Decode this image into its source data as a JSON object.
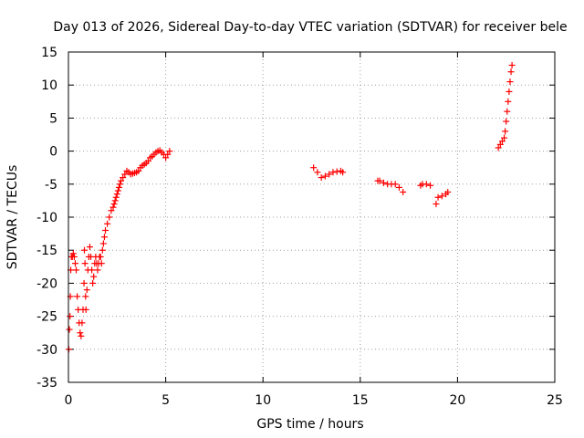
{
  "chart_data": {
    "type": "scatter",
    "title": "Day 013 of 2026, Sidereal Day-to-day VTEC variation (SDTVAR) for receiver bele",
    "xlabel": "GPS time / hours",
    "ylabel": "SDTVAR / TECUs",
    "xlim": [
      0,
      25
    ],
    "ylim": [
      -35,
      15
    ],
    "xticks": [
      0,
      5,
      10,
      15,
      20,
      25
    ],
    "yticks": [
      -35,
      -30,
      -25,
      -20,
      -15,
      -10,
      -5,
      0,
      5,
      10,
      15
    ],
    "grid": true,
    "marker": "plus",
    "color": "#ff0000",
    "series": [
      {
        "name": "SDTVAR",
        "x": [
          0.02,
          0.05,
          0.08,
          0.1,
          0.12,
          0.15,
          0.2,
          0.25,
          0.3,
          0.35,
          0.4,
          0.45,
          0.5,
          0.55,
          0.6,
          0.65,
          0.7,
          0.75,
          0.8,
          0.82,
          0.85,
          0.88,
          0.9,
          0.95,
          1.0,
          1.05,
          1.1,
          1.15,
          1.2,
          1.25,
          1.3,
          1.35,
          1.4,
          1.45,
          1.5,
          1.55,
          1.6,
          1.65,
          1.7,
          1.75,
          1.8,
          1.85,
          1.9,
          2.0,
          2.1,
          2.2,
          2.3,
          2.35,
          2.4,
          2.45,
          2.5,
          2.55,
          2.6,
          2.65,
          2.7,
          2.8,
          2.9,
          3.0,
          3.1,
          3.2,
          3.3,
          3.4,
          3.5,
          3.6,
          3.7,
          3.8,
          3.9,
          4.0,
          4.1,
          4.2,
          4.3,
          4.4,
          4.5,
          4.6,
          4.7,
          4.8,
          4.9,
          5.0,
          5.1,
          5.2,
          12.6,
          12.8,
          13.0,
          13.2,
          13.4,
          13.6,
          13.8,
          14.0,
          14.1,
          15.9,
          16.0,
          16.2,
          16.4,
          16.6,
          16.8,
          17.0,
          17.2,
          18.1,
          18.2,
          18.4,
          18.6,
          18.9,
          19.0,
          19.2,
          19.4,
          19.5,
          22.1,
          22.2,
          22.3,
          22.4,
          22.45,
          22.5,
          22.55,
          22.6,
          22.65,
          22.7,
          22.75,
          22.8
        ],
        "y": [
          -30,
          -27,
          -25,
          -22,
          -18,
          -16,
          -16,
          -15.5,
          -16,
          -17,
          -18,
          -22,
          -24,
          -26,
          -27.5,
          -28,
          -26,
          -24,
          -20,
          -15,
          -17,
          -22,
          -24,
          -21,
          -18,
          -16,
          -14.5,
          -16,
          -18,
          -20,
          -19,
          -17,
          -16,
          -17,
          -18,
          -17,
          -16,
          -16,
          -17,
          -15,
          -14,
          -13,
          -12,
          -11,
          -10,
          -9,
          -8.5,
          -8,
          -7.5,
          -7,
          -6.5,
          -6,
          -5.5,
          -5,
          -4.5,
          -4,
          -3.5,
          -3,
          -3.2,
          -3.5,
          -3.4,
          -3.3,
          -3.2,
          -3,
          -2.5,
          -2.2,
          -2,
          -1.8,
          -1.5,
          -1,
          -0.8,
          -0.5,
          -0.2,
          0,
          0.1,
          -0.2,
          -0.5,
          -1,
          -0.5,
          0,
          -2.5,
          -3.2,
          -4,
          -3.8,
          -3.5,
          -3.2,
          -3.1,
          -3,
          -3.2,
          -4.5,
          -4.5,
          -4.8,
          -5,
          -5,
          -5,
          -5.5,
          -6.2,
          -5.2,
          -5,
          -5,
          -5.2,
          -8,
          -7,
          -6.8,
          -6.5,
          -6.2,
          0.5,
          1,
          1.5,
          2,
          3,
          4.5,
          6,
          7.5,
          9,
          10.5,
          12,
          13
        ]
      }
    ]
  }
}
